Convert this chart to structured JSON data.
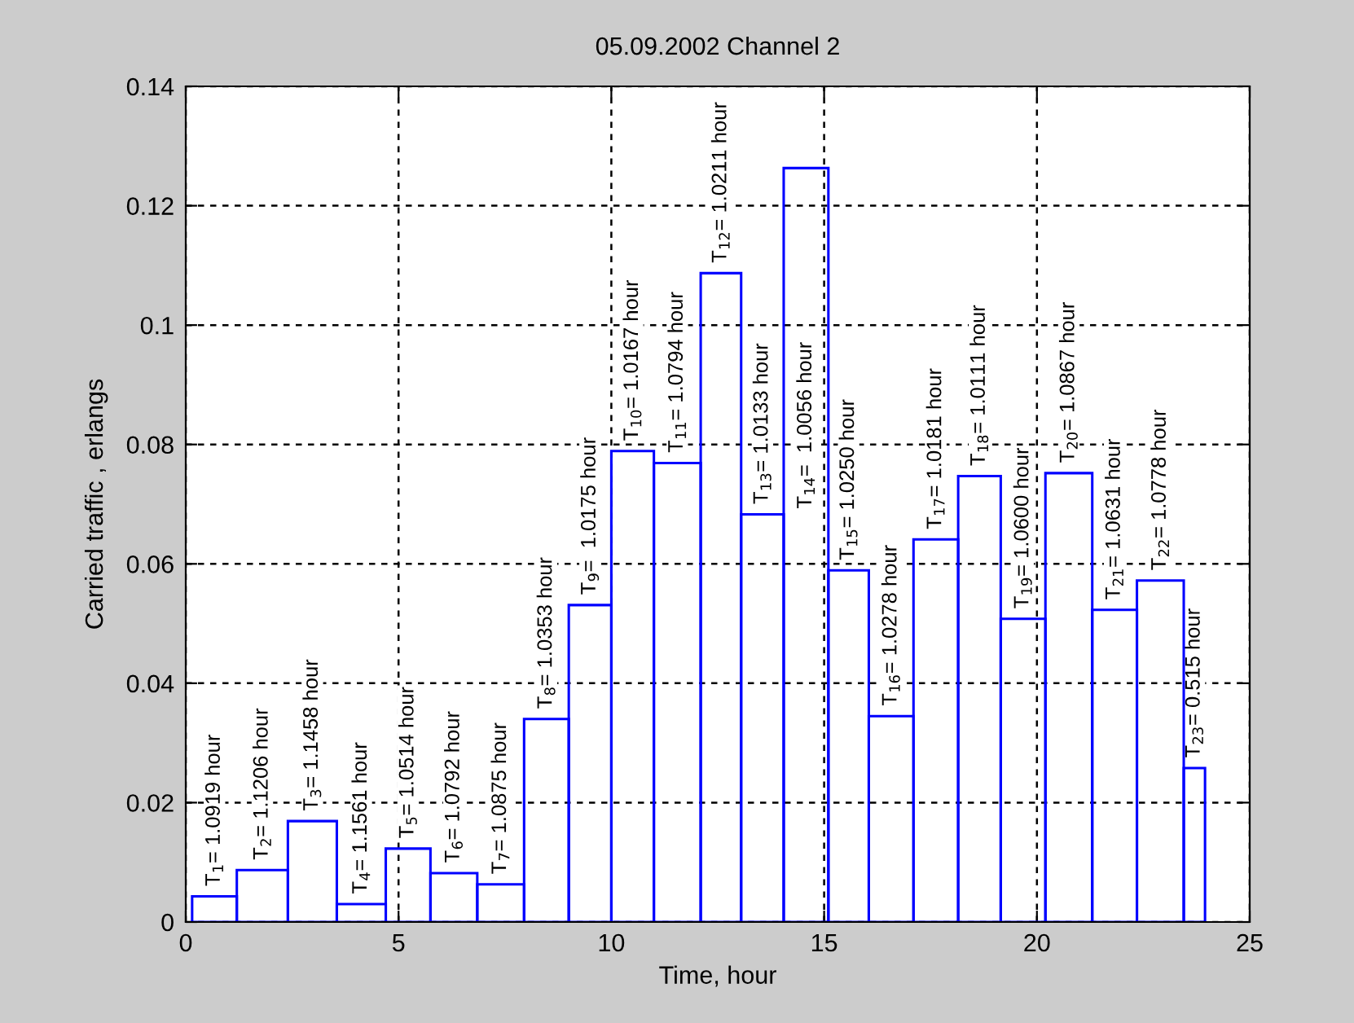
{
  "chart_data": {
    "type": "histogram",
    "title": "05.09.2002 Channel 2",
    "xlabel": "Time, hour",
    "ylabel": "Carried traffic , erlangs",
    "bins": [
      0.15,
      1.2,
      2.4,
      3.55,
      4.7,
      5.75,
      6.85,
      7.95,
      9.0,
      10.0,
      11.0,
      12.1,
      13.05,
      14.05,
      15.1,
      16.05,
      17.1,
      18.15,
      19.15,
      20.2,
      21.3,
      22.35,
      23.45,
      23.95
    ],
    "values": [
      0.0043,
      0.0087,
      0.0169,
      0.003,
      0.0123,
      0.0082,
      0.0063,
      0.034,
      0.0531,
      0.0789,
      0.0769,
      0.1087,
      0.0683,
      0.1263,
      0.0589,
      0.0345,
      0.0641,
      0.0747,
      0.0508,
      0.0752,
      0.0523,
      0.0572,
      0.0258
    ],
    "color": "#0000ff",
    "xlim": [
      0,
      25
    ],
    "ylim": [
      0,
      0.14
    ],
    "xticks": [
      0,
      5,
      10,
      15,
      20,
      25
    ],
    "yticks": [
      0,
      0.02,
      0.04,
      0.06,
      0.08,
      0.1,
      0.12,
      0.14
    ],
    "grid": true,
    "annotations": [
      {
        "text": "T$_{1}$= 1.0919 hour",
        "x": 0.675,
        "y": 0.0043
      },
      {
        "text": "T$_{2}$= 1.1206 hour",
        "x": 1.8,
        "y": 0.0087
      },
      {
        "text": "T$_{3}$= 1.1458 hour",
        "x": 2.975,
        "y": 0.0169
      },
      {
        "text": "T$_{4}$= 1.1561 hour",
        "x": 4.125,
        "y": 0.003
      },
      {
        "text": "T$_{5}$= 1.0514 hour",
        "x": 5.225,
        "y": 0.0123
      },
      {
        "text": "T$_{6}$= 1.0792 hour",
        "x": 6.3,
        "y": 0.0082
      },
      {
        "text": "T$_{7}$= 1.0875 hour",
        "x": 7.4,
        "y": 0.0063
      },
      {
        "text": "T$_{8}$= 1.0353 hour",
        "x": 8.475,
        "y": 0.034
      },
      {
        "text": "T$_{9}$=  1.0175 hour",
        "x": 9.5,
        "y": 0.0531
      },
      {
        "text": "T$_{10}$= 1.0167 hour",
        "x": 10.5,
        "y": 0.0789
      },
      {
        "text": "T$_{11}$= 1.0794 hour",
        "x": 11.55,
        "y": 0.0769
      },
      {
        "text": "T$_{12}$= 1.0211 hour",
        "x": 12.575,
        "y": 0.1087
      },
      {
        "text": "T$_{13}$= 1.0133 hour",
        "x": 13.55,
        "y": 0.0683
      },
      "T$_{14}$=  1.0056 hour",
      {
        "text": "T$_{15}$= 1.0250 hour",
        "x": 15.575,
        "y": 0.0589
      },
      {
        "text": "T$_{16}$= 1.0278 hour",
        "x": 16.575,
        "y": 0.0345
      },
      {
        "text": "T$_{17}$= 1.0181 hour",
        "x": 17.625,
        "y": 0.0641
      },
      {
        "text": "T$_{18}$= 1.0111 hour",
        "x": 18.65,
        "y": 0.0747
      },
      {
        "text": "T$_{19}$= 1.0600 hour",
        "x": 19.675,
        "y": 0.0508
      },
      {
        "text": "T$_{20}$= 1.0867 hour",
        "x": 20.75,
        "y": 0.0752
      },
      {
        "text": "T$_{21}$= 1.0631 hour",
        "x": 21.825,
        "y": 0.0523
      },
      {
        "text": "T$_{22}$= 1.0778 hour",
        "x": 22.9,
        "y": 0.0572
      },
      {
        "text": "T$_{23}$= 0.515 hour",
        "x": 23.7,
        "y": 0.0258
      }
    ]
  }
}
